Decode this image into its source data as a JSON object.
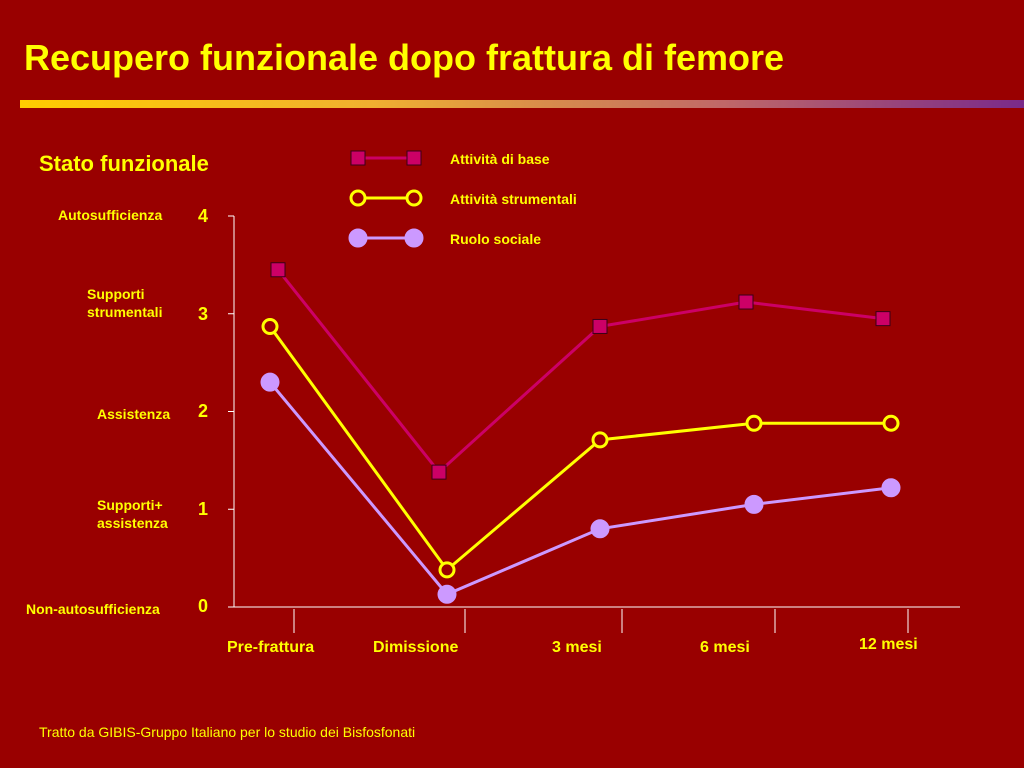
{
  "slide": {
    "title": "Recupero funzionale dopo frattura di femore",
    "source": "Tratto da GIBIS-Gruppo Italiano per lo studio dei Bisfosfonati"
  },
  "chart_data": {
    "type": "line",
    "title": "Stato funzionale",
    "categories": [
      "Pre-frattura",
      "Dimissione",
      "3 mesi",
      "6 mesi",
      "12 mesi"
    ],
    "ylim": [
      0,
      4
    ],
    "y_ticks": [
      0,
      1,
      2,
      3,
      4
    ],
    "y_level_labels": [
      "Non-autosufficienza",
      "Supporti+ assistenza",
      "Assistenza",
      "Supporti strumentali",
      "Autosufficienza"
    ],
    "grid": false,
    "legend_position": "top",
    "series": [
      {
        "name": "Attività di base",
        "values": [
          3.45,
          1.38,
          2.87,
          3.12,
          2.95
        ],
        "color": "#cc0066",
        "marker": "square"
      },
      {
        "name": "Attività strumentali",
        "values": [
          2.87,
          0.38,
          1.71,
          1.88,
          1.88
        ],
        "color": "#ffff00",
        "marker": "hollow-circle"
      },
      {
        "name": "Ruolo sociale",
        "values": [
          2.3,
          0.13,
          0.8,
          1.05,
          1.22
        ],
        "color": "#cc99ff",
        "marker": "filled-circle"
      }
    ],
    "colors": {
      "axis": "#ffffff",
      "text": "#ffff00",
      "background": "#990000"
    }
  }
}
